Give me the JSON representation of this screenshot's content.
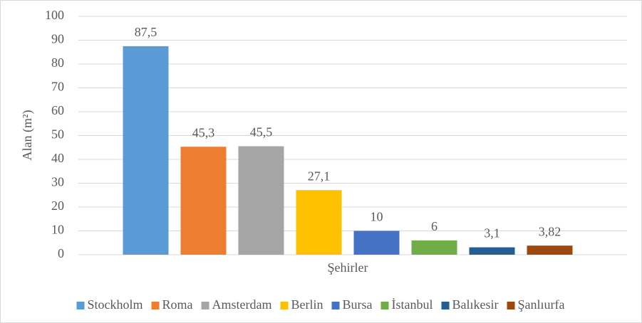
{
  "chart_data": {
    "type": "bar",
    "x_label": "Şehirler",
    "y_label": "Alan (m²)",
    "categories": [
      "Şehirler"
    ],
    "series": [
      {
        "name": "Stockholm",
        "color": "#5b9bd5",
        "values": [
          87.5
        ],
        "value_labels": [
          "87,5"
        ]
      },
      {
        "name": "Roma",
        "color": "#ed7d31",
        "values": [
          45.3
        ],
        "value_labels": [
          "45,3"
        ]
      },
      {
        "name": "Amsterdam",
        "color": "#a5a5a5",
        "values": [
          45.5
        ],
        "value_labels": [
          "45,5"
        ]
      },
      {
        "name": "Berlin",
        "color": "#ffc000",
        "values": [
          27.1
        ],
        "value_labels": [
          "27,1"
        ]
      },
      {
        "name": "Bursa",
        "color": "#4472c4",
        "values": [
          10
        ],
        "value_labels": [
          "10"
        ]
      },
      {
        "name": "İstanbul",
        "color": "#70ad47",
        "values": [
          6
        ],
        "value_labels": [
          "6"
        ]
      },
      {
        "name": "Balıkesir",
        "color": "#255e91",
        "values": [
          3.1
        ],
        "value_labels": [
          "3,1"
        ]
      },
      {
        "name": "Şanlıurfa",
        "color": "#9e480e",
        "values": [
          3.82
        ],
        "value_labels": [
          "3,82"
        ]
      }
    ],
    "ylim": [
      0,
      100
    ],
    "yticks": [
      0,
      10,
      20,
      30,
      40,
      50,
      60,
      70,
      80,
      90,
      100
    ],
    "grid": true,
    "legend": "bottom"
  }
}
